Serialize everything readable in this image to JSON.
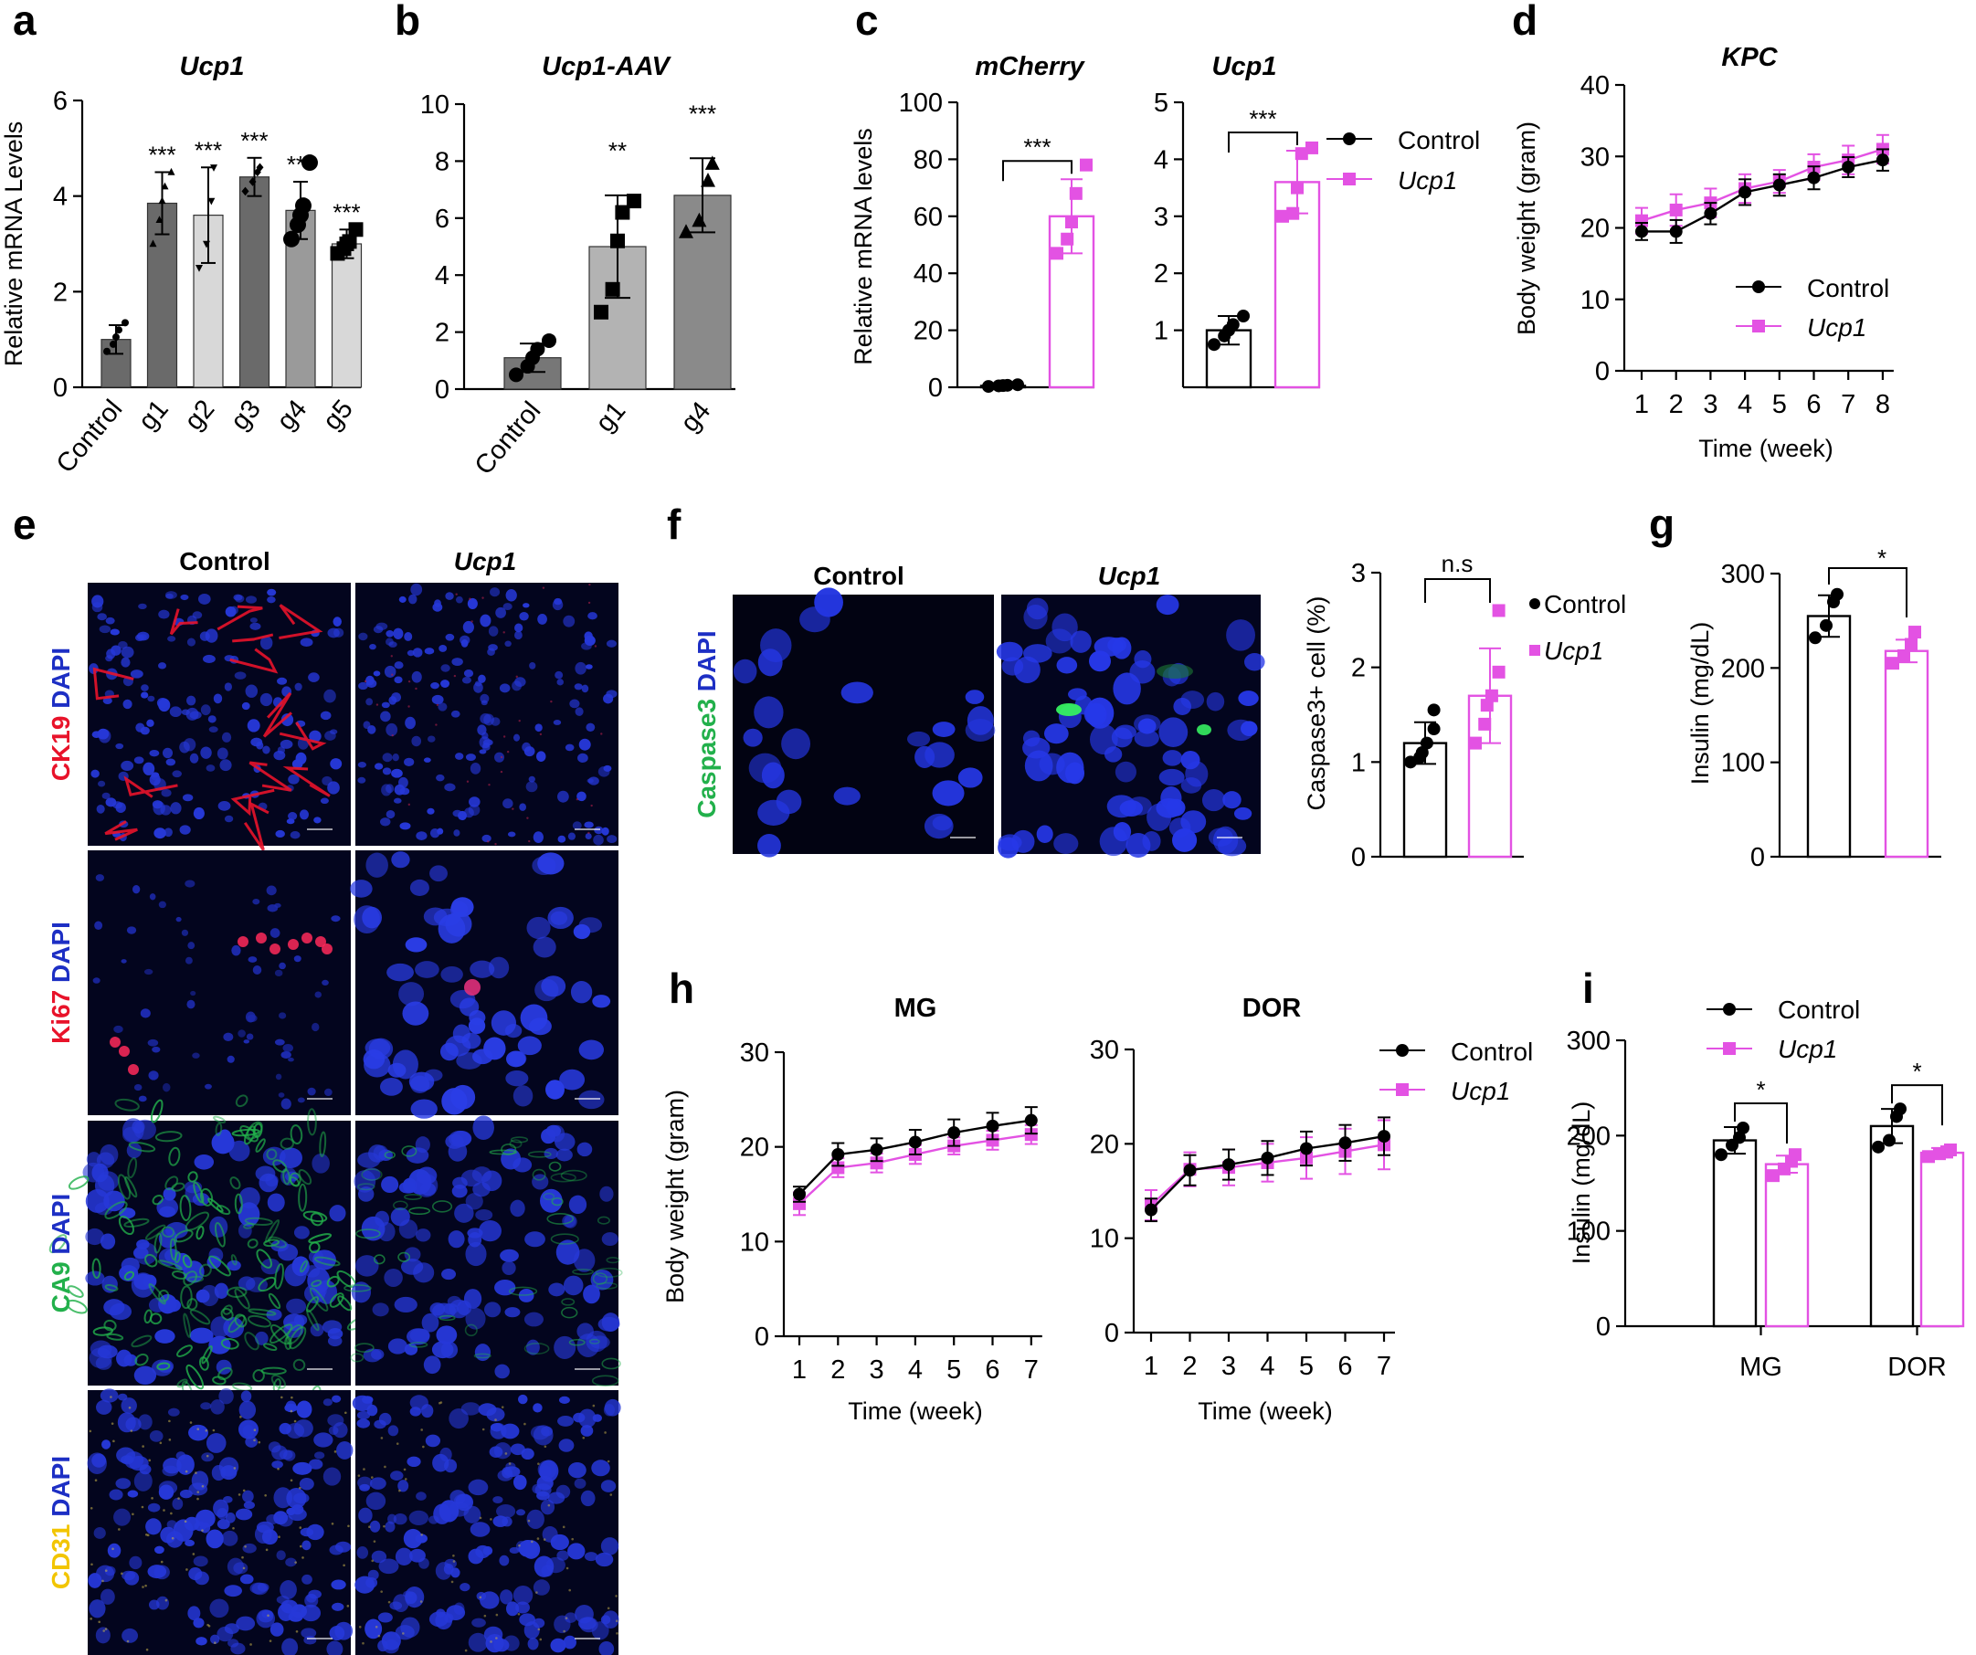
{
  "colors": {
    "control": "#000000",
    "ucp1": "#e352e3",
    "red": "#e8132a",
    "green": "#22b04b",
    "blue": "#1d2fc4",
    "yellow": "#f2c500",
    "bar_dark": "#6a6a6a",
    "bar_mid": "#9a9a9a",
    "bar_light": "#d8d8d8"
  },
  "panels": {
    "a": "a",
    "b": "b",
    "c": "c",
    "d": "d",
    "e": "e",
    "f": "f",
    "g": "g",
    "h": "h",
    "i": "i"
  },
  "legend": {
    "control": "Control",
    "ucp1": "Ucp1"
  },
  "microscopy": {
    "e": {
      "col_control": "Control",
      "col_ucp1": "Ucp1",
      "rows": [
        {
          "marker": "CK19",
          "marker_color": "#e8132a",
          "stain": "DAPI"
        },
        {
          "marker": "Ki67",
          "marker_color": "#e8132a",
          "stain": "DAPI"
        },
        {
          "marker": "CA9",
          "marker_color": "#22b04b",
          "stain": "DAPI"
        },
        {
          "marker": "CD31",
          "marker_color": "#f2c500",
          "stain": "DAPI"
        }
      ]
    },
    "f": {
      "col_control": "Control",
      "col_ucp1": "Ucp1",
      "marker": "Caspase3",
      "marker_color": "#22b04b",
      "stain": "DAPI"
    }
  },
  "chart_data": [
    {
      "id": "a",
      "type": "bar",
      "title": "Ucp1",
      "ylabel": "Relative mRNA Levels",
      "ylim": [
        0,
        6
      ],
      "yticks": [
        0,
        2,
        4,
        6
      ],
      "categories": [
        "Control",
        "g1",
        "g2",
        "g3",
        "g4",
        "g5"
      ],
      "values": [
        1.0,
        3.85,
        3.6,
        4.4,
        3.7,
        3.0
      ],
      "errors": [
        0.3,
        0.65,
        1.0,
        0.4,
        0.6,
        0.3
      ],
      "significance": [
        "",
        "***",
        "***",
        "***",
        "***",
        "***"
      ],
      "points": [
        [
          0.75,
          0.9,
          1.05,
          1.2,
          1.35
        ],
        [
          3.0,
          3.5,
          3.9,
          4.2,
          4.5
        ],
        [
          2.5,
          3.0,
          3.9,
          4.6
        ],
        [
          4.1,
          4.3,
          4.5,
          4.6
        ],
        [
          3.1,
          3.4,
          3.6,
          3.8,
          4.7
        ],
        [
          2.8,
          2.9,
          3.0,
          3.05,
          3.3
        ]
      ]
    },
    {
      "id": "b",
      "type": "bar",
      "title": "Ucp1-AAV",
      "ylabel": "",
      "ylim": [
        0,
        10
      ],
      "yticks": [
        0,
        2,
        4,
        6,
        8,
        10
      ],
      "categories": [
        "Control",
        "g1",
        "g4"
      ],
      "values": [
        1.1,
        5.0,
        6.8
      ],
      "errors": [
        0.5,
        1.8,
        1.3
      ],
      "significance": [
        "",
        "**",
        "***"
      ],
      "points": [
        [
          0.5,
          0.8,
          1.1,
          1.4,
          1.7
        ],
        [
          2.7,
          3.5,
          5.2,
          6.2,
          6.6
        ],
        [
          5.5,
          5.9,
          7.3,
          7.9
        ]
      ]
    },
    {
      "id": "c1",
      "type": "bar",
      "title": "mCherry",
      "ylabel": "Relative mRNA levels",
      "ylim": [
        0,
        100
      ],
      "yticks": [
        0,
        20,
        40,
        60,
        80,
        100
      ],
      "categories": [
        "Control",
        "Ucp1"
      ],
      "values": [
        0.5,
        60
      ],
      "errors": [
        0.3,
        13
      ],
      "significance": [
        "***"
      ],
      "points": [
        [
          0.3,
          0.5,
          0.6,
          0.7,
          0.9
        ],
        [
          47,
          52,
          58,
          68,
          78
        ]
      ]
    },
    {
      "id": "c2",
      "type": "bar",
      "title": "Ucp1",
      "ylabel": "",
      "ylim": [
        0,
        5
      ],
      "yticks": [
        1,
        2,
        3,
        4,
        5
      ],
      "categories": [
        "Control",
        "Ucp1"
      ],
      "values": [
        1.0,
        3.6
      ],
      "errors": [
        0.25,
        0.55
      ],
      "significance": [
        "***"
      ],
      "points": [
        [
          0.75,
          0.9,
          1.0,
          1.1,
          1.25
        ],
        [
          3.0,
          3.05,
          3.5,
          4.1,
          4.2
        ]
      ]
    },
    {
      "id": "d",
      "type": "line",
      "title": "KPC",
      "xlabel": "Time (week)",
      "ylabel": "Body weight (gram)",
      "ylim": [
        0,
        40
      ],
      "yticks": [
        0,
        10,
        20,
        30,
        40
      ],
      "x": [
        1,
        2,
        3,
        4,
        5,
        6,
        7,
        8
      ],
      "series": [
        {
          "name": "Control",
          "values": [
            19.5,
            19.5,
            22,
            25,
            26,
            27,
            28.5,
            29.5
          ],
          "errors": [
            1.2,
            1.6,
            1.5,
            1.8,
            1.5,
            1.6,
            1.4,
            1.5
          ]
        },
        {
          "name": "Ucp1",
          "values": [
            21,
            22.5,
            23.5,
            25.5,
            26.5,
            28.5,
            29.5,
            31
          ],
          "errors": [
            1.8,
            2.2,
            2.0,
            2.0,
            1.6,
            1.8,
            2.0,
            2.0
          ]
        }
      ]
    },
    {
      "id": "f",
      "type": "bar",
      "title": "",
      "ylabel": "Caspase3+ cell (%)",
      "ylim": [
        0,
        3
      ],
      "yticks": [
        0,
        1,
        2,
        3
      ],
      "categories": [
        "Control",
        "Ucp1"
      ],
      "values": [
        1.2,
        1.7
      ],
      "errors": [
        0.22,
        0.5
      ],
      "significance": [
        "n.s"
      ],
      "points": [
        [
          1.0,
          1.05,
          1.1,
          1.2,
          1.35,
          1.55
        ],
        [
          1.2,
          1.4,
          1.6,
          1.7,
          1.95,
          2.6
        ]
      ]
    },
    {
      "id": "g",
      "type": "bar",
      "title": "",
      "ylabel": "Insulin (mg/dL)",
      "ylim": [
        0,
        300
      ],
      "yticks": [
        0,
        100,
        200,
        300
      ],
      "categories": [
        "Control",
        "Ucp1"
      ],
      "values": [
        255,
        218
      ],
      "errors": [
        22,
        12
      ],
      "significance": [
        "*"
      ],
      "points": [
        [
          232,
          245,
          270,
          278
        ],
        [
          205,
          213,
          225,
          238
        ]
      ]
    },
    {
      "id": "h1",
      "type": "line",
      "title": "MG",
      "xlabel": "Time (week)",
      "ylabel": "Body weight (gram)",
      "ylim": [
        0,
        30
      ],
      "yticks": [
        0,
        10,
        20,
        30
      ],
      "x": [
        1,
        2,
        3,
        4,
        5,
        6,
        7
      ],
      "series": [
        {
          "name": "Control",
          "values": [
            15,
            19.2,
            19.7,
            20.5,
            21.5,
            22.2,
            22.8
          ],
          "errors": [
            0.8,
            1.2,
            1.2,
            1.3,
            1.4,
            1.4,
            1.4
          ]
        },
        {
          "name": "Ucp1",
          "values": [
            14,
            17.8,
            18.3,
            19.2,
            20.1,
            20.7,
            21.3
          ],
          "errors": [
            1.2,
            1.0,
            1.0,
            1.0,
            0.9,
            1.0,
            1.0
          ]
        }
      ]
    },
    {
      "id": "h2",
      "type": "line",
      "title": "DOR",
      "xlabel": "Time (week)",
      "ylabel": "",
      "ylim": [
        0,
        30
      ],
      "yticks": [
        0,
        10,
        20,
        30
      ],
      "x": [
        1,
        2,
        3,
        4,
        5,
        6,
        7
      ],
      "series": [
        {
          "name": "Control",
          "values": [
            13,
            17.2,
            17.8,
            18.5,
            19.5,
            20.1,
            20.8
          ],
          "errors": [
            1.2,
            1.6,
            1.6,
            1.8,
            1.8,
            1.9,
            2.0
          ]
        },
        {
          "name": "Ucp1",
          "values": [
            13.5,
            17.3,
            17.5,
            18.0,
            18.5,
            19.2,
            19.9
          ],
          "errors": [
            1.6,
            1.8,
            1.9,
            2.0,
            2.2,
            2.4,
            2.6
          ]
        }
      ]
    },
    {
      "id": "i",
      "type": "bar",
      "title": "",
      "xlabel": "",
      "ylabel": "Insulin (mg/dL)",
      "ylim": [
        0,
        300
      ],
      "yticks": [
        0,
        100,
        200,
        300
      ],
      "categories": [
        "MG",
        "DOR"
      ],
      "series": [
        {
          "name": "Control",
          "values": [
            195,
            210
          ],
          "errors": [
            14,
            18
          ],
          "points": [
            [
              180,
              190,
              198,
              208
            ],
            [
              188,
              195,
              220,
              228
            ]
          ]
        },
        {
          "name": "Ucp1",
          "values": [
            170,
            182
          ],
          "errors": [
            9,
            5
          ],
          "points": [
            [
              158,
              165,
              173,
              180
            ],
            [
              178,
              181,
              183,
              185
            ]
          ]
        }
      ],
      "significance": [
        "*",
        "*"
      ]
    }
  ]
}
